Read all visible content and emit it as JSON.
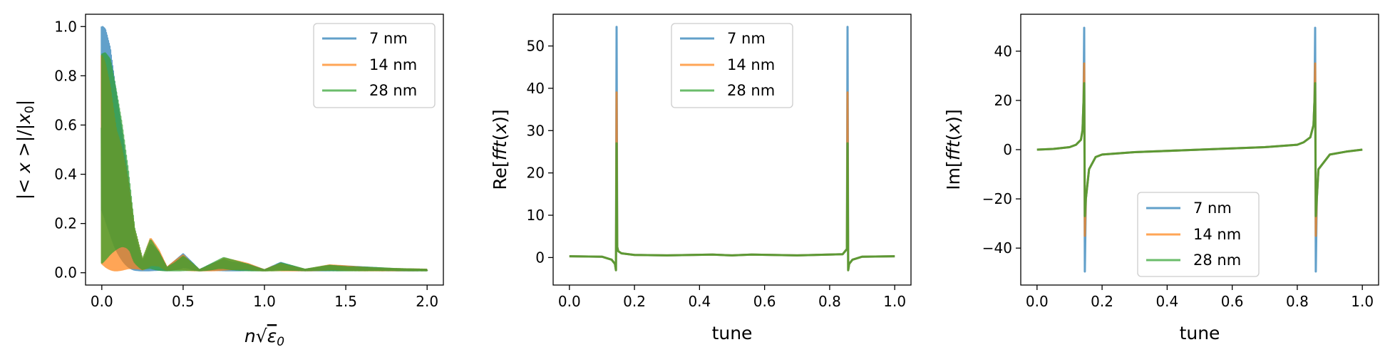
{
  "colors": {
    "s7": "#1f77b4",
    "s14": "#ff7f0e",
    "s28": "#2ca02c"
  },
  "chart_data": [
    {
      "type": "line",
      "title": "",
      "xlabel": "n√ε₀",
      "ylabel": "|<x>|/|x₀|",
      "xlim": [
        -0.1,
        2.1
      ],
      "ylim": [
        -0.05,
        1.05
      ],
      "xticks": [
        0.0,
        0.5,
        1.0,
        1.5,
        2.0
      ],
      "xtick_labels": [
        "0.0",
        "0.5",
        "1.0",
        "1.5",
        "2.0"
      ],
      "yticks": [
        0.0,
        0.2,
        0.4,
        0.6,
        0.8,
        1.0
      ],
      "ytick_labels": [
        "0.0",
        "0.2",
        "0.4",
        "0.6",
        "0.8",
        "1.0"
      ],
      "legend": "top-right",
      "grid": false,
      "series": [
        {
          "name": "7 nm",
          "color": "#1f77b4",
          "envelope_x": [
            0.0,
            0.02,
            0.05,
            0.08,
            0.12,
            0.16,
            0.2,
            0.25,
            0.3,
            0.35,
            0.4,
            0.5,
            0.6,
            0.75,
            0.9,
            1.0,
            1.1,
            1.25,
            1.4,
            1.6,
            1.8,
            2.0
          ],
          "envelope_y": [
            1.0,
            0.99,
            0.92,
            0.78,
            0.62,
            0.42,
            0.18,
            0.05,
            0.14,
            0.09,
            0.02,
            0.075,
            0.01,
            0.06,
            0.035,
            0.01,
            0.04,
            0.012,
            0.03,
            0.022,
            0.015,
            0.012
          ]
        },
        {
          "name": "14 nm",
          "color": "#ff7f0e",
          "envelope_x": [
            0.0,
            0.02,
            0.05,
            0.08,
            0.12,
            0.16,
            0.2,
            0.25,
            0.3,
            0.35,
            0.4,
            0.5,
            0.6,
            0.75,
            0.9,
            1.0,
            1.1,
            1.25,
            1.4,
            1.6,
            1.8,
            2.0
          ],
          "envelope_y": [
            1.0,
            0.99,
            0.93,
            0.8,
            0.63,
            0.43,
            0.19,
            0.05,
            0.14,
            0.09,
            0.02,
            0.075,
            0.01,
            0.06,
            0.035,
            0.01,
            0.04,
            0.012,
            0.03,
            0.022,
            0.015,
            0.012
          ]
        },
        {
          "name": "28 nm",
          "color": "#2ca02c",
          "envelope_x": [
            0.0,
            0.02,
            0.05,
            0.08,
            0.12,
            0.16,
            0.2,
            0.25,
            0.3,
            0.35,
            0.4,
            0.5,
            0.6,
            0.75,
            0.9,
            1.0,
            1.1,
            1.25,
            1.4,
            1.6,
            1.8,
            2.0
          ],
          "envelope_y": [
            1.0,
            0.98,
            0.92,
            0.79,
            0.62,
            0.42,
            0.18,
            0.05,
            0.14,
            0.09,
            0.02,
            0.075,
            0.01,
            0.06,
            0.035,
            0.01,
            0.04,
            0.012,
            0.03,
            0.022,
            0.015,
            0.012
          ]
        }
      ]
    },
    {
      "type": "line",
      "title": "",
      "xlabel": "tune",
      "ylabel": "Re[fft(x)]",
      "xlim": [
        -0.05,
        1.05
      ],
      "ylim": [
        -6.5,
        57.5
      ],
      "xticks": [
        0.0,
        0.2,
        0.4,
        0.6,
        0.8,
        1.0
      ],
      "xtick_labels": [
        "0.0",
        "0.2",
        "0.4",
        "0.6",
        "0.8",
        "1.0"
      ],
      "yticks": [
        0,
        10,
        20,
        30,
        40,
        50
      ],
      "ytick_labels": [
        "0",
        "10",
        "20",
        "30",
        "40",
        "50"
      ],
      "legend": "top-center",
      "grid": false,
      "series": [
        {
          "name": "7 nm",
          "color": "#1f77b4",
          "x": [
            0.0,
            0.1,
            0.13,
            0.14,
            0.143,
            0.145,
            0.147,
            0.15,
            0.16,
            0.2,
            0.3,
            0.44,
            0.5,
            0.56,
            0.7,
            0.84,
            0.853,
            0.855,
            0.857,
            0.86,
            0.87,
            0.9,
            1.0
          ],
          "y": [
            0.3,
            0.2,
            -0.5,
            -1.5,
            -3.0,
            54.5,
            2.5,
            1.5,
            1.0,
            0.6,
            0.5,
            0.7,
            0.5,
            0.7,
            0.5,
            0.8,
            2.0,
            54.5,
            -3.0,
            -1.5,
            -0.5,
            0.2,
            0.3
          ]
        },
        {
          "name": "14 nm",
          "color": "#ff7f0e",
          "x": [
            0.0,
            0.1,
            0.13,
            0.14,
            0.143,
            0.145,
            0.147,
            0.15,
            0.16,
            0.2,
            0.3,
            0.44,
            0.5,
            0.56,
            0.7,
            0.84,
            0.853,
            0.855,
            0.857,
            0.86,
            0.87,
            0.9,
            1.0
          ],
          "y": [
            0.3,
            0.2,
            -0.5,
            -1.5,
            -3.0,
            39.0,
            2.5,
            1.5,
            1.0,
            0.6,
            0.5,
            0.7,
            0.5,
            0.7,
            0.5,
            0.8,
            2.0,
            39.0,
            -3.0,
            -1.5,
            -0.5,
            0.2,
            0.3
          ]
        },
        {
          "name": "28 nm",
          "color": "#2ca02c",
          "x": [
            0.0,
            0.1,
            0.13,
            0.14,
            0.143,
            0.145,
            0.147,
            0.15,
            0.16,
            0.2,
            0.3,
            0.44,
            0.5,
            0.56,
            0.7,
            0.84,
            0.853,
            0.855,
            0.857,
            0.86,
            0.87,
            0.9,
            1.0
          ],
          "y": [
            0.3,
            0.2,
            -0.5,
            -1.5,
            -3.0,
            27.0,
            2.5,
            1.5,
            1.0,
            0.6,
            0.5,
            0.7,
            0.5,
            0.7,
            0.5,
            0.8,
            2.0,
            27.0,
            -3.0,
            -1.5,
            -0.5,
            0.2,
            0.3
          ]
        }
      ]
    },
    {
      "type": "line",
      "title": "",
      "xlabel": "tune",
      "ylabel": "Im[fft(x)]",
      "xlim": [
        -0.05,
        1.05
      ],
      "ylim": [
        -55,
        55
      ],
      "xticks": [
        0.0,
        0.2,
        0.4,
        0.6,
        0.8,
        1.0
      ],
      "xtick_labels": [
        "0.0",
        "0.2",
        "0.4",
        "0.6",
        "0.8",
        "1.0"
      ],
      "yticks": [
        -40,
        -20,
        0,
        20,
        40
      ],
      "ytick_labels": [
        "−40",
        "−20",
        "0",
        "20",
        "40"
      ],
      "legend": "bottom-center",
      "grid": false,
      "series": [
        {
          "name": "7 nm",
          "color": "#1f77b4",
          "x": [
            0.0,
            0.05,
            0.1,
            0.12,
            0.135,
            0.14,
            0.143,
            0.145,
            0.147,
            0.15,
            0.16,
            0.18,
            0.2,
            0.3,
            0.5,
            0.7,
            0.8,
            0.82,
            0.84,
            0.85,
            0.853,
            0.855,
            0.857,
            0.86,
            0.865,
            0.9,
            0.95,
            1.0
          ],
          "y": [
            0.0,
            0.3,
            1.0,
            2.0,
            4.0,
            8.0,
            20.0,
            49.5,
            -49.5,
            -20.0,
            -8.0,
            -3.0,
            -2.0,
            -1.0,
            0.0,
            1.0,
            2.0,
            3.0,
            5.0,
            10.0,
            20.0,
            49.5,
            -49.5,
            -20.0,
            -8.0,
            -2.0,
            -0.8,
            0.0
          ]
        },
        {
          "name": "14 nm",
          "color": "#ff7f0e",
          "x": [
            0.0,
            0.05,
            0.1,
            0.12,
            0.135,
            0.14,
            0.143,
            0.145,
            0.147,
            0.15,
            0.16,
            0.18,
            0.2,
            0.3,
            0.5,
            0.7,
            0.8,
            0.82,
            0.84,
            0.85,
            0.853,
            0.855,
            0.857,
            0.86,
            0.865,
            0.9,
            0.95,
            1.0
          ],
          "y": [
            0.0,
            0.3,
            1.0,
            2.0,
            4.0,
            8.0,
            20.0,
            35.0,
            -35.0,
            -20.0,
            -8.0,
            -3.0,
            -2.0,
            -1.0,
            0.0,
            1.0,
            2.0,
            3.0,
            5.0,
            10.0,
            20.0,
            35.0,
            -35.0,
            -20.0,
            -8.0,
            -2.0,
            -0.8,
            0.0
          ]
        },
        {
          "name": "28 nm",
          "color": "#2ca02c",
          "x": [
            0.0,
            0.05,
            0.1,
            0.12,
            0.135,
            0.14,
            0.143,
            0.145,
            0.147,
            0.15,
            0.16,
            0.18,
            0.2,
            0.3,
            0.5,
            0.7,
            0.8,
            0.82,
            0.84,
            0.85,
            0.853,
            0.855,
            0.857,
            0.86,
            0.865,
            0.9,
            0.95,
            1.0
          ],
          "y": [
            0.0,
            0.3,
            1.0,
            2.0,
            4.0,
            8.0,
            20.0,
            27.0,
            -27.0,
            -20.0,
            -8.0,
            -3.0,
            -2.0,
            -1.0,
            0.0,
            1.0,
            2.0,
            3.0,
            5.0,
            10.0,
            20.0,
            27.0,
            -27.0,
            -20.0,
            -8.0,
            -2.0,
            -0.8,
            0.0
          ]
        }
      ]
    }
  ]
}
